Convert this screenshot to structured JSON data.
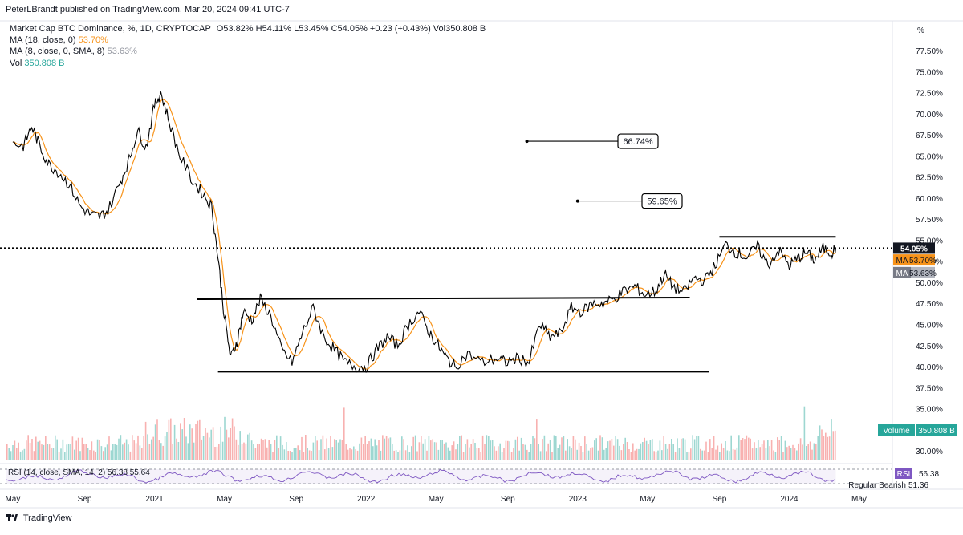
{
  "header": {
    "published": "PeterLBrandt published on TradingView.com, Mar 20, 2024 09:41 UTC-7"
  },
  "legend": {
    "main": "Market Cap BTC Dominance, %, 1D, CRYPTOCAP",
    "ohlc": "O53.82% H54.11% L53.45% C54.05% +0.23 (+0.43%) Vol350.808 B",
    "ma18_label": "MA (18, close, 0)",
    "ma18_value": "53.70%",
    "ma8_label": "MA (8, close, 0, SMA, 8)",
    "ma8_value": "53.63%",
    "vol_label": "Vol",
    "vol_value": "350.808 B"
  },
  "watermark": {
    "text": "TradingView"
  },
  "colors": {
    "price": "#000000",
    "ma": "#f7931a",
    "vol_up": "#26a69a",
    "vol_down": "#ef5350",
    "rsi": "#7e57c2"
  },
  "chart_data": {
    "type": "line",
    "title": "Market Cap BTC Dominance, %, 1D, CRYPTOCAP",
    "ylabel": "%",
    "ylim": [
      29,
      79
    ],
    "y_ticks": [
      "77.50%",
      "75.00%",
      "72.50%",
      "70.00%",
      "67.50%",
      "65.00%",
      "62.50%",
      "60.00%",
      "57.50%",
      "55.00%",
      "52.50%",
      "50.00%",
      "47.50%",
      "45.00%",
      "42.50%",
      "40.00%",
      "37.50%",
      "35.00%",
      "30.00%"
    ],
    "x_ticks": [
      "May",
      "Sep",
      "2021",
      "May",
      "Sep",
      "2022",
      "May",
      "Sep",
      "2023",
      "May",
      "Sep",
      "2024",
      "May"
    ],
    "x_range": [
      2020.3,
      2024.48
    ],
    "series": [
      {
        "name": "BTC Dominance",
        "x": [
          2020.33,
          2020.38,
          2020.42,
          2020.46,
          2020.5,
          2020.55,
          2020.6,
          2020.65,
          2020.7,
          2020.74,
          2020.78,
          2020.84,
          2020.88,
          2020.92,
          2020.96,
          2021.0,
          2021.03,
          2021.07,
          2021.12,
          2021.18,
          2021.23,
          2021.27,
          2021.3,
          2021.33,
          2021.36,
          2021.39,
          2021.42,
          2021.46,
          2021.5,
          2021.55,
          2021.6,
          2021.65,
          2021.7,
          2021.75,
          2021.8,
          2021.85,
          2021.9,
          2021.95,
          2022.0,
          2022.05,
          2022.1,
          2022.15,
          2022.2,
          2022.25,
          2022.3,
          2022.34,
          2022.38,
          2022.42,
          2022.48,
          2022.55,
          2022.62,
          2022.66,
          2022.72,
          2022.77,
          2022.82,
          2022.87,
          2022.92,
          2022.97,
          2023.02,
          2023.07,
          2023.12,
          2023.17,
          2023.22,
          2023.27,
          2023.32,
          2023.37,
          2023.41,
          2023.45,
          2023.5,
          2023.55,
          2023.6,
          2023.65,
          2023.7,
          2023.75,
          2023.8,
          2023.85,
          2023.9,
          2023.95,
          2024.0,
          2024.04,
          2024.08,
          2024.12,
          2024.16,
          2024.2,
          2024.22
        ],
        "values": [
          66.5,
          66.2,
          68.5,
          66.0,
          64.0,
          63.0,
          61.5,
          59.0,
          58.0,
          57.8,
          58.5,
          62.0,
          64.5,
          68.0,
          66.0,
          71.0,
          72.5,
          69.0,
          65.0,
          62.0,
          60.5,
          59.0,
          53.0,
          46.0,
          41.0,
          43.0,
          46.5,
          45.5,
          48.0,
          46.0,
          42.0,
          40.5,
          44.0,
          47.0,
          43.5,
          42.0,
          40.5,
          40.0,
          40.0,
          42.0,
          43.5,
          42.5,
          45.0,
          46.5,
          44.0,
          42.5,
          41.0,
          40.0,
          41.5,
          40.5,
          41.0,
          40.5,
          41.0,
          40.5,
          45.0,
          43.5,
          44.0,
          47.0,
          46.5,
          47.5,
          47.5,
          48.0,
          49.0,
          49.5,
          48.5,
          49.0,
          51.0,
          49.5,
          48.8,
          50.5,
          50.2,
          52.0,
          54.5,
          53.5,
          53.0,
          54.2,
          52.0,
          53.8,
          52.0,
          52.8,
          53.5,
          52.6,
          54.0,
          53.5,
          54.05
        ]
      },
      {
        "name": "MA (18, close, 0)",
        "last_value": 53.7
      },
      {
        "name": "MA (8, close, 0, SMA, 8)",
        "last_value": 53.63
      }
    ],
    "annotations": [
      {
        "type": "label",
        "text": "66.74%",
        "value": 66.74
      },
      {
        "type": "label",
        "text": "59.65%",
        "value": 59.65
      },
      {
        "type": "hline",
        "name": "upper range",
        "value": 48.0
      },
      {
        "type": "hline",
        "name": "lower range",
        "value": 39.4
      },
      {
        "type": "hline",
        "name": "top range",
        "value": 55.4
      },
      {
        "type": "dotted",
        "name": "last price line",
        "value": 54.05
      }
    ],
    "price_labels": {
      "close": "54.05%",
      "ma18": "53.70%",
      "ma8": "53.63%"
    },
    "volume": {
      "label": "Volume",
      "value": "350.808 B"
    },
    "rsi": {
      "legend": "RSI (14, close, SMA, 14, 2) 56.38 55.64",
      "label": "RSI",
      "value": "56.38",
      "level_30": "51.36",
      "divergence": "Regular Bearish"
    },
    "axis_unit": "%"
  }
}
